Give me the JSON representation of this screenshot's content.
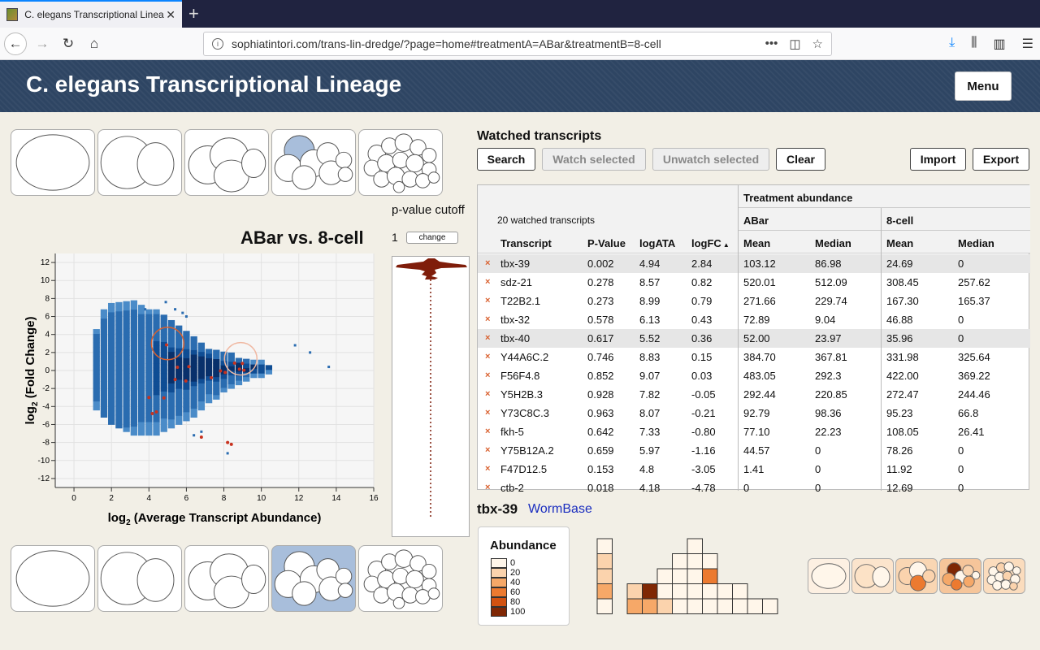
{
  "browser": {
    "tab_title": "C. elegans Transcriptional Linea",
    "url": "sophiatintori.com/trans-lin-dredge/?page=home#treatmentA=ABar&treatmentB=8-cell"
  },
  "header": {
    "title": "C. elegans Transcriptional Lineage",
    "menu_label": "Menu"
  },
  "plot": {
    "title": "ABar vs. 8-cell",
    "pvalue_label": "p-value cutoff",
    "pvalue_value": "1",
    "change_label": "change",
    "chart_data": {
      "type": "heatmap",
      "xlabel_prefix": "log",
      "xlabel_suffix": " (Average Transcript Abundance)",
      "ylabel_prefix": "log",
      "ylabel_suffix": " (Fold Change)",
      "xlim": [
        -1,
        16
      ],
      "ylim": [
        -13,
        13
      ],
      "xticks": [
        0,
        2,
        4,
        6,
        8,
        10,
        12,
        14,
        16
      ],
      "yticks": [
        12,
        10,
        8,
        6,
        4,
        2,
        0,
        -2,
        -4,
        -6,
        -8,
        -10,
        -12
      ],
      "highlight_circles": [
        {
          "x": 5,
          "y": 3
        },
        {
          "x": 8.9,
          "y": 1.3
        }
      ]
    }
  },
  "watched": {
    "title": "Watched transcripts",
    "buttons": {
      "search": "Search",
      "watch": "Watch selected",
      "unwatch": "Unwatch selected",
      "clear": "Clear",
      "import": "Import",
      "export": "Export"
    },
    "count_label": "20 watched transcripts",
    "group_header": "Treatment abundance",
    "treatment_a": "ABar",
    "treatment_b": "8-cell",
    "columns": [
      "Transcript",
      "P-Value",
      "logATA",
      "logFC",
      "Mean",
      "Median",
      "Mean",
      "Median"
    ],
    "sort_indicator": "▲",
    "rows": [
      [
        "tbx-39",
        "0.002",
        "4.94",
        "2.84",
        "103.12",
        "86.98",
        "24.69",
        "0"
      ],
      [
        "sdz-21",
        "0.278",
        "8.57",
        "0.82",
        "520.01",
        "512.09",
        "308.45",
        "257.62"
      ],
      [
        "T22B2.1",
        "0.273",
        "8.99",
        "0.79",
        "271.66",
        "229.74",
        "167.30",
        "165.37"
      ],
      [
        "tbx-32",
        "0.578",
        "6.13",
        "0.43",
        "72.89",
        "9.04",
        "46.88",
        "0"
      ],
      [
        "tbx-40",
        "0.617",
        "5.52",
        "0.36",
        "52.00",
        "23.97",
        "35.96",
        "0"
      ],
      [
        "Y44A6C.2",
        "0.746",
        "8.83",
        "0.15",
        "384.70",
        "367.81",
        "331.98",
        "325.64"
      ],
      [
        "F56F4.8",
        "0.852",
        "9.07",
        "0.03",
        "483.05",
        "292.3",
        "422.00",
        "369.22"
      ],
      [
        "Y5H2B.3",
        "0.928",
        "7.82",
        "-0.05",
        "292.44",
        "220.85",
        "272.47",
        "244.46"
      ],
      [
        "Y73C8C.3",
        "0.963",
        "8.07",
        "-0.21",
        "92.79",
        "98.36",
        "95.23",
        "66.8"
      ],
      [
        "fkh-5",
        "0.642",
        "7.33",
        "-0.80",
        "77.10",
        "22.23",
        "108.05",
        "26.41"
      ],
      [
        "Y75B12A.2",
        "0.659",
        "5.97",
        "-1.16",
        "44.57",
        "0",
        "78.26",
        "0"
      ],
      [
        "F47D12.5",
        "0.153",
        "4.8",
        "-3.05",
        "1.41",
        "0",
        "11.92",
        "0"
      ],
      [
        "ctb-2",
        "0.018",
        "4.18",
        "-4.78",
        "0",
        "0",
        "12.69",
        "0"
      ]
    ],
    "remove_glyph": "×"
  },
  "selected": {
    "name": "tbx-39",
    "link": "WormBase",
    "legend_title": "Abundance",
    "legend": [
      {
        "label": "0",
        "color": "#fff6ea"
      },
      {
        "label": "20",
        "color": "#fbd3ad"
      },
      {
        "label": "40",
        "color": "#f6a868"
      },
      {
        "label": "60",
        "color": "#ec7a30"
      },
      {
        "label": "80",
        "color": "#d25211"
      },
      {
        "label": "100",
        "color": "#7f2704"
      }
    ]
  },
  "colors": {
    "header_bg": "#2e4563",
    "accent_link": "#1a2dbf",
    "plot_blue": "#2a6cb0",
    "plot_dark": "#08306b",
    "remove_x": "#d9602e",
    "highlight_red": "#c8321e"
  }
}
